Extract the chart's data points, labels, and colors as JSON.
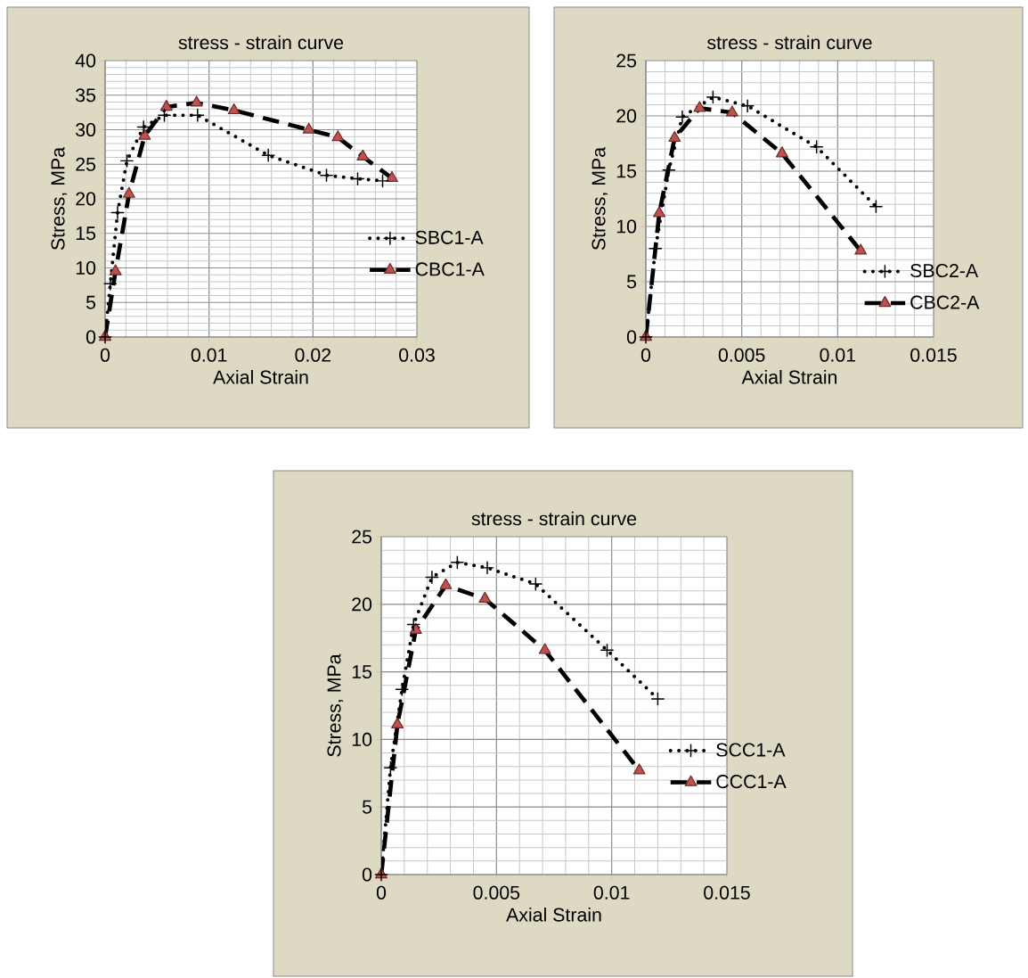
{
  "chart_data": [
    {
      "type": "line",
      "title": "stress - strain curve",
      "xlabel": "Axial Strain",
      "ylabel": "Stress, MPa",
      "xlim": [
        0,
        0.03
      ],
      "ylim": [
        0,
        40
      ],
      "xticks": [
        0,
        0.01,
        0.02,
        0.03
      ],
      "yticks": [
        0,
        5,
        10,
        15,
        20,
        25,
        30,
        35,
        40
      ],
      "grid": true,
      "legend": "right",
      "series": [
        {
          "name": "SBC1-A",
          "color": "#000000",
          "marker": "cross",
          "line_style": "dotted",
          "x": [
            0,
            0.0005,
            0.0012,
            0.0021,
            0.0037,
            0.0057,
            0.0089,
            0.0157,
            0.0213,
            0.0243,
            0.0267
          ],
          "values": [
            0,
            7.7,
            18.0,
            25.5,
            30.4,
            32.1,
            32.1,
            26.3,
            23.4,
            22.9,
            22.6
          ]
        },
        {
          "name": "CBC1-A",
          "color": "#c0504d",
          "marker": "triangle",
          "line_style": "dashed",
          "x": [
            0,
            0.001,
            0.0023,
            0.0038,
            0.0059,
            0.0088,
            0.0124,
            0.0196,
            0.0224,
            0.0248,
            0.0276
          ],
          "values": [
            0,
            9.5,
            20.7,
            29.1,
            33.3,
            33.9,
            32.8,
            30.0,
            28.9,
            26.1,
            23.0
          ]
        }
      ]
    },
    {
      "type": "line",
      "title": "stress - strain curve",
      "xlabel": "Axial Strain",
      "ylabel": "Stress, MPa",
      "xlim": [
        0,
        0.015
      ],
      "ylim": [
        0,
        25
      ],
      "xticks": [
        0,
        0.005,
        0.01,
        0.015
      ],
      "yticks": [
        0,
        5,
        10,
        15,
        20,
        25
      ],
      "grid": true,
      "legend": "right",
      "series": [
        {
          "name": "SBC2-A",
          "color": "#000000",
          "marker": "cross",
          "line_style": "dotted",
          "x": [
            0,
            0.0005,
            0.0012,
            0.0019,
            0.0035,
            0.0053,
            0.0089,
            0.012
          ],
          "values": [
            0,
            8.0,
            15.1,
            19.9,
            21.7,
            20.9,
            17.2,
            11.8
          ]
        },
        {
          "name": "CBC2-A",
          "color": "#c0504d",
          "marker": "triangle",
          "line_style": "dashed",
          "x": [
            0,
            0.0007,
            0.0015,
            0.0028,
            0.0045,
            0.0071,
            0.0112
          ],
          "values": [
            0,
            11.2,
            18.0,
            20.7,
            20.3,
            16.6,
            7.8
          ]
        }
      ]
    },
    {
      "type": "line",
      "title": "stress - strain curve",
      "xlabel": "Axial Strain",
      "ylabel": "Stress, MPa",
      "xlim": [
        0,
        0.015
      ],
      "ylim": [
        0,
        25
      ],
      "xticks": [
        0,
        0.005,
        0.01,
        0.015
      ],
      "yticks": [
        0,
        5,
        10,
        15,
        20,
        25
      ],
      "grid": true,
      "legend": "right",
      "series": [
        {
          "name": "SCC1-A",
          "color": "#000000",
          "marker": "cross",
          "line_style": "dotted",
          "x": [
            0,
            0.0004,
            0.0009,
            0.0014,
            0.0022,
            0.0033,
            0.0046,
            0.0067,
            0.0098,
            0.012
          ],
          "values": [
            0,
            7.9,
            13.7,
            18.5,
            22.0,
            23.1,
            22.7,
            21.5,
            16.6,
            13.0
          ]
        },
        {
          "name": "CCC1-A",
          "color": "#c0504d",
          "marker": "triangle",
          "line_style": "dashed",
          "x": [
            0,
            0.0007,
            0.0015,
            0.0028,
            0.0045,
            0.0071,
            0.0112
          ],
          "values": [
            0,
            11.1,
            18.1,
            21.4,
            20.4,
            16.6,
            7.7
          ]
        }
      ]
    }
  ]
}
